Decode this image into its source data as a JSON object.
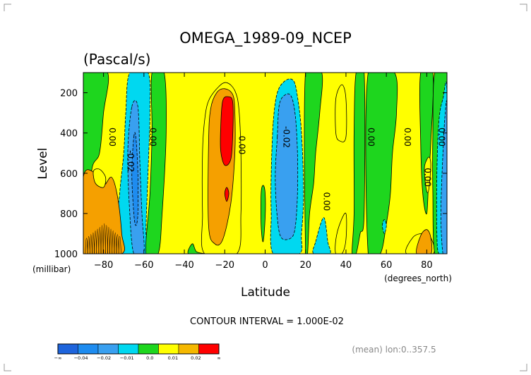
{
  "chart_data": {
    "type": "heatmap",
    "title": "OMEGA_1989-09_NCEP",
    "subtitle": "(Pascal/s)",
    "xlabel": "Latitude",
    "ylabel": "Level",
    "x_unit": "(degrees_north)",
    "y_unit": "(millibar)",
    "xlim": [
      -90,
      90
    ],
    "ylim": [
      1000,
      100
    ],
    "x_ticks": [
      -80,
      -60,
      -40,
      -20,
      0,
      20,
      40,
      60,
      80
    ],
    "y_ticks": [
      200,
      400,
      600,
      800,
      1000
    ],
    "contour_interval": "CONTOUR INTERVAL = 1.000E-02",
    "footnote": "(mean) lon:0..357.5",
    "contour_labels": [
      {
        "text": "0.00",
        "x": -77,
        "y": 420
      },
      {
        "text": "0.00",
        "x": -57,
        "y": 420
      },
      {
        "text": "-0.02",
        "x": -68,
        "y": 540
      },
      {
        "text": "0.00",
        "x": -13,
        "y": 460
      },
      {
        "text": "-0.02",
        "x": 9,
        "y": 420
      },
      {
        "text": "0.00",
        "x": 29,
        "y": 740
      },
      {
        "text": "0.00",
        "x": 51,
        "y": 420
      },
      {
        "text": "0.00",
        "x": 69,
        "y": 420
      },
      {
        "text": "0.00",
        "x": 79,
        "y": 620
      },
      {
        "text": "0.00",
        "x": 86,
        "y": 420
      }
    ],
    "regions": [
      {
        "level": 0.0,
        "pts": [
          [
            -90,
            100
          ],
          [
            -90,
            1000
          ],
          [
            -87,
            1000
          ],
          [
            -86,
            600
          ],
          [
            -82,
            500
          ],
          [
            -80,
            300
          ],
          [
            -78,
            100
          ]
        ]
      },
      {
        "level": -0.01,
        "pts": [
          [
            -74,
            1000
          ],
          [
            -72,
            700
          ],
          [
            -70,
            500
          ],
          [
            -69,
            300
          ],
          [
            -67,
            100
          ],
          [
            -58,
            100
          ],
          [
            -57,
            300
          ],
          [
            -58,
            600
          ],
          [
            -59,
            900
          ],
          [
            -58,
            1000
          ]
        ]
      },
      {
        "level": 0.0,
        "pts": [
          [
            -56,
            100
          ],
          [
            -50,
            100
          ],
          [
            -49,
            400
          ],
          [
            -51,
            800
          ],
          [
            -53,
            1000
          ],
          [
            -59,
            1000
          ],
          [
            -57,
            700
          ],
          [
            -56,
            400
          ]
        ]
      },
      {
        "level": -0.02,
        "pts": [
          [
            -66,
            270
          ],
          [
            -63,
            270
          ],
          [
            -62,
            550
          ],
          [
            -61,
            800
          ],
          [
            -60,
            1000
          ],
          [
            -65,
            1000
          ],
          [
            -67,
            800
          ],
          [
            -68,
            500
          ]
        ]
      },
      {
        "level": -0.03,
        "pts": [
          [
            -65,
            420
          ],
          [
            -64,
            420
          ],
          [
            -63,
            600
          ],
          [
            -63,
            800
          ],
          [
            -64,
            860
          ],
          [
            -65,
            800
          ],
          [
            -66,
            600
          ]
        ]
      },
      {
        "level": 0.02,
        "pts": [
          [
            -90,
            620
          ],
          [
            -84,
            600
          ],
          [
            -80,
            660
          ],
          [
            -76,
            620
          ],
          [
            -73,
            720
          ],
          [
            -71,
            900
          ],
          [
            -71,
            1000
          ],
          [
            -90,
            1000
          ]
        ]
      },
      {
        "level": 0.01,
        "pts": [
          [
            -85,
            590
          ],
          [
            -82,
            580
          ],
          [
            -79,
            620
          ],
          [
            -80,
            670
          ],
          [
            -84,
            650
          ]
        ]
      },
      {
        "level": 0.01,
        "pts": [
          [
            -30,
            340
          ],
          [
            -28,
            240
          ],
          [
            -23,
            170
          ],
          [
            -19,
            150
          ],
          [
            -15,
            190
          ],
          [
            -13,
            280
          ],
          [
            -12,
            500
          ],
          [
            -12,
            800
          ],
          [
            -14,
            1000
          ],
          [
            -30,
            1000
          ],
          [
            -31,
            800
          ],
          [
            -31,
            500
          ]
        ]
      },
      {
        "level": 0.0,
        "pts": [
          [
            -38,
            1000
          ],
          [
            -36,
            950
          ],
          [
            -34,
            990
          ],
          [
            -30,
            1000
          ]
        ]
      },
      {
        "level": 0.02,
        "pts": [
          [
            -28,
            450
          ],
          [
            -27,
            280
          ],
          [
            -24,
            200
          ],
          [
            -20,
            180
          ],
          [
            -16,
            210
          ],
          [
            -15,
            300
          ],
          [
            -15,
            500
          ],
          [
            -17,
            750
          ],
          [
            -21,
            930
          ],
          [
            -25,
            950
          ],
          [
            -28,
            860
          ]
        ]
      },
      {
        "level": 0.03,
        "pts": [
          [
            -22,
            370
          ],
          [
            -21,
            240
          ],
          [
            -18,
            220
          ],
          [
            -16,
            250
          ],
          [
            -16,
            400
          ],
          [
            -17,
            530
          ],
          [
            -20,
            560
          ],
          [
            -22,
            490
          ]
        ]
      },
      {
        "level": 0.03,
        "pts": [
          [
            -19,
            670
          ],
          [
            -18,
            700
          ],
          [
            -19,
            740
          ],
          [
            -20,
            700
          ]
        ]
      },
      {
        "level": 0.0,
        "pts": [
          [
            -2,
            700
          ],
          [
            -1,
            660
          ],
          [
            0,
            700
          ],
          [
            0,
            820
          ],
          [
            -1,
            940
          ],
          [
            -2,
            860
          ]
        ]
      },
      {
        "level": -0.01,
        "pts": [
          [
            4,
            350
          ],
          [
            6,
            200
          ],
          [
            10,
            140
          ],
          [
            14,
            140
          ],
          [
            16,
            220
          ],
          [
            18,
            400
          ],
          [
            19,
            700
          ],
          [
            18,
            900
          ],
          [
            17,
            1000
          ],
          [
            4,
            1000
          ],
          [
            3,
            800
          ],
          [
            3,
            600
          ]
        ]
      },
      {
        "level": -0.02,
        "pts": [
          [
            6,
            420
          ],
          [
            7,
            260
          ],
          [
            10,
            210
          ],
          [
            13,
            220
          ],
          [
            15,
            320
          ],
          [
            16,
            500
          ],
          [
            16,
            700
          ],
          [
            15,
            860
          ],
          [
            13,
            920
          ],
          [
            8,
            920
          ],
          [
            6,
            820
          ],
          [
            5,
            620
          ]
        ]
      },
      {
        "level": 0.0,
        "pts": [
          [
            20,
            100
          ],
          [
            28,
            100
          ],
          [
            27,
            300
          ],
          [
            25,
            500
          ],
          [
            24,
            650
          ],
          [
            22,
            800
          ],
          [
            21,
            1000
          ],
          [
            20,
            1000
          ]
        ]
      },
      {
        "level": -0.01,
        "pts": [
          [
            25,
            940
          ],
          [
            29,
            820
          ],
          [
            31,
            940
          ],
          [
            32,
            1000
          ],
          [
            24,
            1000
          ]
        ]
      },
      {
        "level": 0.01,
        "pts": [
          [
            35,
            230
          ],
          [
            38,
            160
          ],
          [
            40,
            230
          ],
          [
            40,
            420
          ],
          [
            37,
            440
          ],
          [
            35,
            400
          ]
        ]
      },
      {
        "level": 0.01,
        "pts": [
          [
            35,
            930
          ],
          [
            37,
            850
          ],
          [
            40,
            800
          ],
          [
            40,
            930
          ],
          [
            38,
            1000
          ],
          [
            35,
            1000
          ]
        ]
      },
      {
        "level": 0.0,
        "pts": [
          [
            45,
            100
          ],
          [
            49,
            100
          ],
          [
            49,
            800
          ],
          [
            47,
            900
          ],
          [
            45,
            1000
          ],
          [
            43,
            1000
          ],
          [
            44,
            800
          ],
          [
            44,
            400
          ]
        ]
      },
      {
        "level": 0.0,
        "pts": [
          [
            51,
            100
          ],
          [
            64,
            100
          ],
          [
            65,
            300
          ],
          [
            63,
            500
          ],
          [
            62,
            700
          ],
          [
            60,
            850
          ],
          [
            57,
            1000
          ],
          [
            51,
            1000
          ]
        ]
      },
      {
        "level": -0.01,
        "pts": [
          [
            58,
            860
          ],
          [
            59,
            830
          ],
          [
            60,
            860
          ],
          [
            59,
            900
          ]
        ]
      },
      {
        "level": 0.01,
        "pts": [
          [
            70,
            1000
          ],
          [
            73,
            920
          ],
          [
            78,
            900
          ],
          [
            82,
            920
          ],
          [
            83,
            1000
          ]
        ]
      },
      {
        "level": 0.02,
        "pts": [
          [
            75,
            1000
          ],
          [
            77,
            910
          ],
          [
            80,
            880
          ],
          [
            82,
            920
          ],
          [
            82,
            1000
          ]
        ]
      },
      {
        "level": 0.0,
        "pts": [
          [
            77,
            100
          ],
          [
            83,
            100
          ],
          [
            82,
            450
          ],
          [
            81,
            600
          ],
          [
            80,
            800
          ],
          [
            78,
            700
          ],
          [
            77,
            450
          ]
        ]
      },
      {
        "level": 0.01,
        "pts": [
          [
            79,
            560
          ],
          [
            81,
            520
          ],
          [
            82,
            560
          ],
          [
            81,
            680
          ],
          [
            80,
            690
          ],
          [
            79,
            620
          ]
        ]
      },
      {
        "level": 0.0,
        "pts": [
          [
            84,
            100
          ],
          [
            90,
            100
          ],
          [
            90,
            1000
          ],
          [
            84,
            1000
          ],
          [
            83,
            700
          ],
          [
            83,
            400
          ]
        ]
      },
      {
        "level": -0.01,
        "pts": [
          [
            90,
            200
          ],
          [
            88,
            230
          ],
          [
            86,
            340
          ],
          [
            85,
            600
          ],
          [
            85,
            900
          ],
          [
            86,
            1000
          ],
          [
            90,
            1000
          ]
        ]
      },
      {
        "level": -0.02,
        "pts": [
          [
            90,
            290
          ],
          [
            89,
            320
          ],
          [
            88,
            500
          ],
          [
            87,
            800
          ],
          [
            88,
            1000
          ],
          [
            90,
            1000
          ]
        ]
      }
    ],
    "legend": {
      "bins": [
        -0.05,
        -0.04,
        -0.03,
        -0.02,
        -0.01,
        0.0,
        0.005,
        0.01,
        0.015,
        0.02,
        0.03
      ],
      "labels": [
        "-∞",
        "-0.04",
        "-0.02",
        "-0.01",
        "0.0",
        "0.01",
        "0.02",
        "∞"
      ],
      "label_positions": [
        0,
        1,
        2,
        3,
        4,
        5,
        6,
        7
      ]
    },
    "colors": {
      "-0.04": "#1e64dc",
      "-0.03": "#1e8cf0",
      "-0.02": "#39a0f0",
      "-0.01": "#00d8f0",
      "0.00": "#1ed61e",
      "0.005": "#ffff00",
      "0.01": "#ffff00",
      "0.015": "#f5b800",
      "0.02": "#f5a000",
      "0.03": "#ff0000",
      "background": "#ffff00"
    }
  }
}
